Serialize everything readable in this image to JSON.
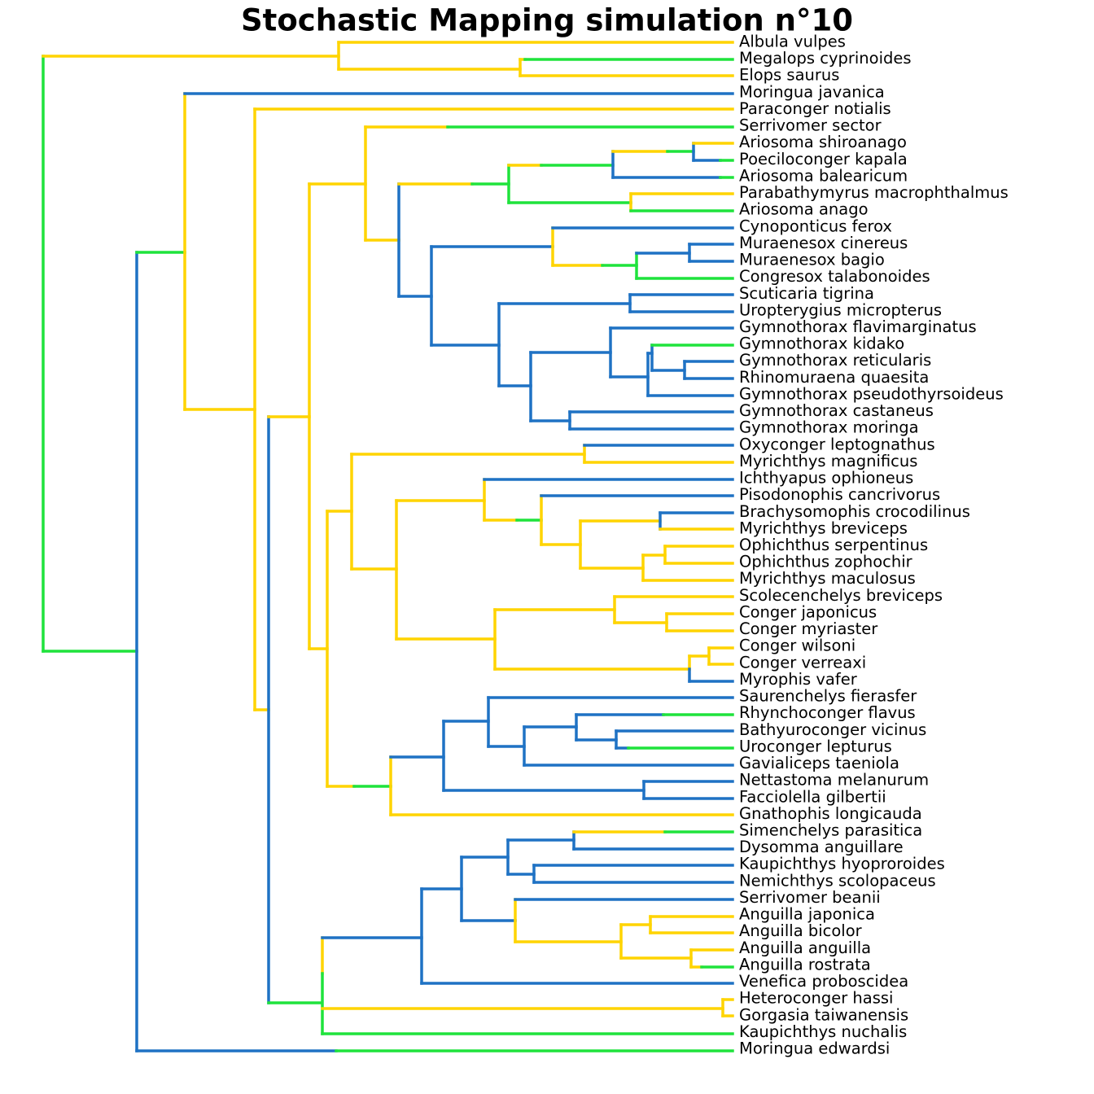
{
  "title": "Stochastic Mapping simulation n°10",
  "tips": [
    "Albula vulpes",
    "Megalops cyprinoides",
    "Elops saurus",
    "Moringua javanica",
    "Paraconger notialis",
    "Serrivomer sector",
    "Ariosoma shiroanago",
    "Poeciloconger kapala",
    "Ariosoma balearicum",
    "Parabathymyrus macrophthalmus",
    "Ariosoma anago",
    "Cynoponticus ferox",
    "Muraenesox cinereus",
    "Muraenesox bagio",
    "Congresox talabonoides",
    "Scuticaria tigrina",
    "Uropterygius micropterus",
    "Gymnothorax flavimarginatus",
    "Gymnothorax kidako",
    "Gymnothorax reticularis",
    "Rhinomuraena quaesita",
    "Gymnothorax pseudothyrsoideus",
    "Gymnothorax castaneus",
    "Gymnothorax moringa",
    "Oxyconger leptognathus",
    "Myrichthys magnificus",
    "Ichthyapus ophioneus",
    "Pisodonophis cancrivorus",
    "Brachysomophis crocodilinus",
    "Myrichthys breviceps",
    "Ophichthus serpentinus",
    "Ophichthus zophochir",
    "Myrichthys maculosus",
    "Scolecenchelys breviceps",
    "Conger japonicus",
    "Conger myriaster",
    "Conger wilsoni",
    "Conger verreaxi",
    "Myrophis vafer",
    "Saurenchelys fierasfer",
    "Rhynchoconger flavus",
    "Bathyuroconger vicinus",
    "Uroconger lepturus",
    "Gavialiceps taeniola",
    "Nettastoma melanurum",
    "Facciolella gilbertii",
    "Gnathophis longicauda",
    "Simenchelys parasitica",
    "Dysomma anguillare",
    "Kaupichthys hyoproroides",
    "Nemichthys scolopaceus",
    "Serrivomer beanii",
    "Anguilla japonica",
    "Anguilla bicolor",
    "Anguilla anguilla",
    "Anguilla rostrata",
    "Venefica proboscidea",
    "Heteroconger hassi",
    "Gorgasia taiwanensis",
    "Kaupichthys nuchalis",
    "Moringua edwardsi"
  ]
}
